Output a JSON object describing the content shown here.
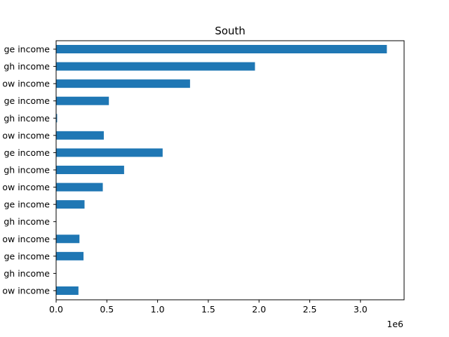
{
  "chart_data": {
    "type": "bar",
    "orientation": "horizontal",
    "title": "South",
    "xlabel": "",
    "ylabel": "",
    "x_offset_label": "1e6",
    "xlim": [
      0,
      3.43
    ],
    "x_ticks": [
      "0.0",
      "0.5",
      "1.0",
      "1.5",
      "2.0",
      "2.5",
      "3.0"
    ],
    "x_tick_values": [
      0,
      0.5,
      1.0,
      1.5,
      2.0,
      2.5,
      3.0
    ],
    "categories": [
      "ge income",
      "gh income",
      "ow income",
      "ge income",
      "gh income",
      "ow income",
      "ge income",
      "gh income",
      "ow income",
      "ge income",
      "gh income",
      "ow income",
      "ge income",
      "gh income",
      "ow income"
    ],
    "values": [
      3.26,
      1.96,
      1.32,
      0.52,
      0.01,
      0.47,
      1.05,
      0.67,
      0.46,
      0.28,
      0.0,
      0.23,
      0.27,
      0.0,
      0.22
    ],
    "bar_color": "#1f77b4",
    "grid": false,
    "legend": "none"
  }
}
